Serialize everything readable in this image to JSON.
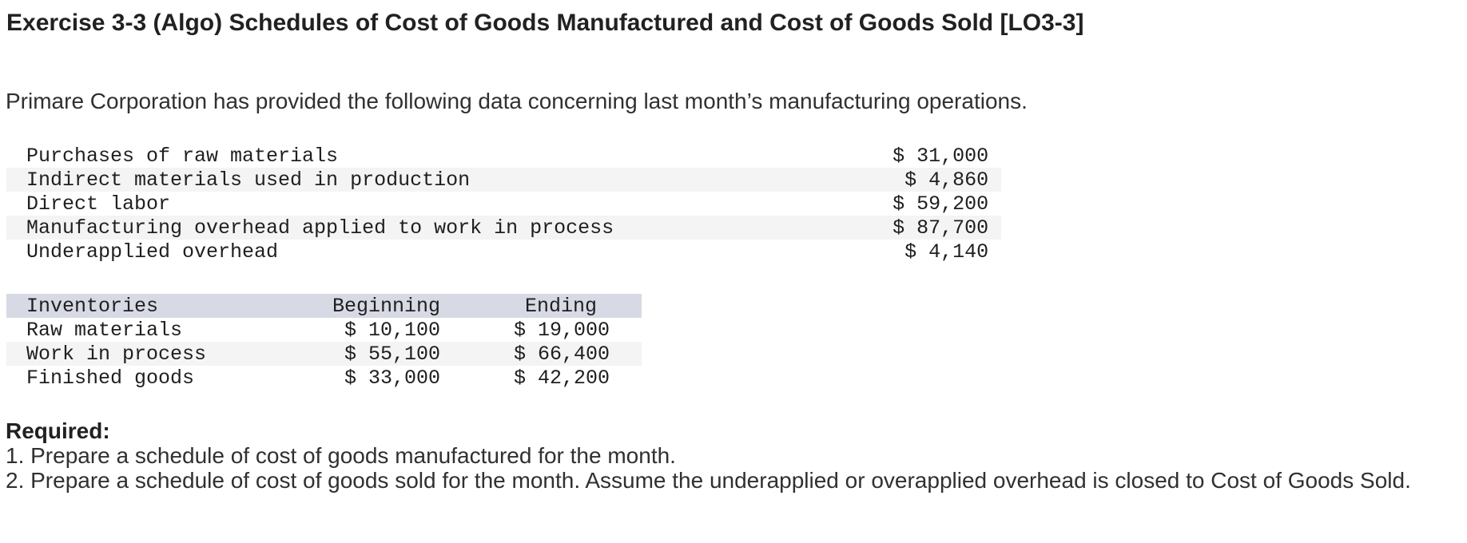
{
  "page": {
    "title": "Exercise 3-3 (Algo) Schedules of Cost of Goods Manufactured and Cost of Goods Sold [LO3-3]",
    "intro": "Primare Corporation has provided the following data concerning last month’s manufacturing operations."
  },
  "cost_table": {
    "rows": [
      {
        "label": "Purchases of raw materials",
        "amount": "$ 31,000"
      },
      {
        "label": "Indirect materials used in production",
        "amount": "$ 4,860"
      },
      {
        "label": "Direct labor",
        "amount": "$ 59,200"
      },
      {
        "label": "Manufacturing overhead applied to work in process",
        "amount": "$ 87,700"
      },
      {
        "label": "Underapplied overhead",
        "amount": "$ 4,140"
      }
    ]
  },
  "inventories_table": {
    "header": {
      "label": "Inventories",
      "beginning": "Beginning",
      "ending": "Ending"
    },
    "rows": [
      {
        "label": "Raw materials",
        "beginning": "$ 10,100",
        "ending": "$ 19,000"
      },
      {
        "label": "Work in process",
        "beginning": "$ 55,100",
        "ending": "$ 66,400"
      },
      {
        "label": "Finished goods",
        "beginning": "$ 33,000",
        "ending": "$ 42,200"
      }
    ]
  },
  "required": {
    "heading": "Required:",
    "items": [
      "1. Prepare a schedule of cost of goods manufactured for the month.",
      "2. Prepare a schedule of cost of goods sold for the month. Assume the underapplied or overapplied overhead is closed to Cost of Goods Sold."
    ]
  },
  "colors": {
    "table_header_band": "#d7dae4",
    "row_stripe": "#f4f4f4",
    "text": "#303030"
  }
}
